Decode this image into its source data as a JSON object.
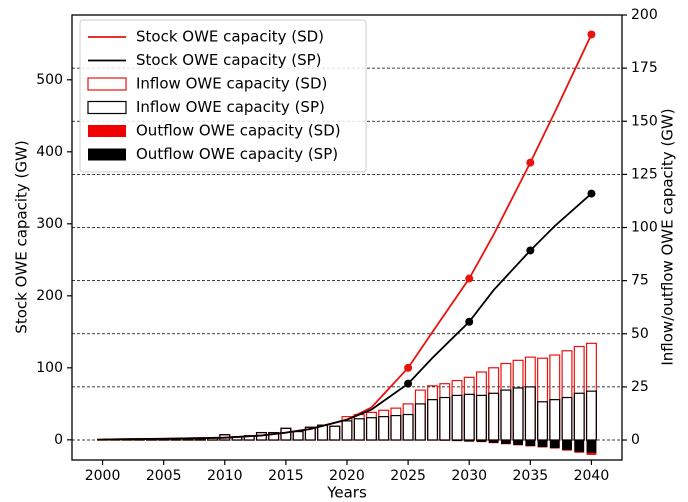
{
  "chart_data": {
    "type": "combo",
    "xlabel": "Years",
    "ylabel": "Stock OWE capacity (GW)",
    "y2label": "Inflow/outflow OWE capacity (GW)",
    "xlim": [
      1997.5,
      2042.5
    ],
    "xticks": [
      2000,
      2005,
      2010,
      2015,
      2020,
      2025,
      2030,
      2035,
      2040
    ],
    "ylim": [
      -28,
      590
    ],
    "yticks": [
      0,
      100,
      200,
      300,
      400,
      500
    ],
    "y2lim": [
      -9.4,
      200
    ],
    "y2ticks": [
      0,
      25,
      50,
      75,
      100,
      125,
      150,
      175,
      200
    ],
    "grid": "y2",
    "legend": "upper left",
    "marked_x": [
      2025,
      2030,
      2035,
      2040
    ],
    "x": [
      2000,
      2001,
      2002,
      2003,
      2004,
      2005,
      2006,
      2007,
      2008,
      2009,
      2010,
      2011,
      2012,
      2013,
      2014,
      2015,
      2016,
      2017,
      2018,
      2019,
      2020,
      2021,
      2022,
      2023,
      2024,
      2025,
      2026,
      2027,
      2028,
      2029,
      2030,
      2031,
      2032,
      2033,
      2034,
      2035,
      2036,
      2037,
      2038,
      2039,
      2040
    ],
    "series": [
      {
        "name": "Stock OWE capacity (SD)",
        "kind": "line",
        "color": "#e8130f",
        "x": [
          2000,
          2005,
          2010,
          2013,
          2015,
          2017,
          2020,
          2022,
          2025,
          2027,
          2030,
          2032,
          2035,
          2037,
          2040
        ],
        "values": [
          0.5,
          1.5,
          3,
          6,
          10,
          15,
          28,
          45,
          100,
          150,
          224,
          285,
          385,
          455,
          563
        ]
      },
      {
        "name": "Stock OWE capacity (SP)",
        "kind": "line",
        "color": "#000000",
        "x": [
          2000,
          2005,
          2010,
          2013,
          2015,
          2017,
          2020,
          2022,
          2025,
          2027,
          2030,
          2032,
          2035,
          2037,
          2040
        ],
        "values": [
          0.5,
          1.5,
          3,
          6,
          10,
          15,
          28,
          42,
          78,
          114,
          164,
          208,
          263,
          297,
          342
        ]
      },
      {
        "name": "Inflow OWE capacity (SD)",
        "kind": "bar",
        "style": "outline",
        "axis": "y2",
        "color": "#e8130f",
        "values": [
          0.3,
          0.3,
          0.3,
          0.4,
          0.4,
          0.4,
          0.5,
          0.5,
          0.6,
          1,
          2.5,
          1.5,
          2,
          3.5,
          3.5,
          5.5,
          4,
          6,
          7,
          6.5,
          11,
          12,
          13,
          14,
          15,
          17,
          23.5,
          25.5,
          26.5,
          28,
          29.5,
          32,
          34,
          36,
          37.5,
          39,
          38.5,
          40,
          42,
          44,
          45.5
        ]
      },
      {
        "name": "Inflow OWE capacity (SP)",
        "kind": "bar",
        "style": "outline",
        "axis": "y2",
        "color": "#000000",
        "values": [
          0.3,
          0.3,
          0.3,
          0.4,
          0.4,
          0.4,
          0.5,
          0.5,
          0.6,
          1,
          2.5,
          1.5,
          2,
          3.5,
          3.5,
          5.5,
          4,
          6,
          7,
          6.5,
          9,
          10,
          10.5,
          11,
          11.5,
          12,
          17,
          19,
          20,
          21,
          21.5,
          21,
          22,
          23.5,
          24.5,
          25,
          18,
          19,
          20,
          22,
          23
        ]
      },
      {
        "name": "Outflow OWE capacity (SD)",
        "kind": "bar",
        "style": "filled",
        "axis": "y2",
        "color": "#f00000",
        "values": [
          0,
          0,
          0,
          0,
          0,
          0,
          0,
          0,
          0,
          0,
          0,
          0,
          0,
          0,
          0,
          0,
          0,
          0,
          0,
          0,
          0,
          0,
          0,
          0,
          0,
          0,
          0,
          0,
          -0.3,
          -0.5,
          -0.8,
          -1,
          -1.5,
          -2,
          -2.5,
          -3,
          -3.5,
          -4,
          -5,
          -6,
          -7
        ]
      },
      {
        "name": "Outflow OWE capacity (SP)",
        "kind": "bar",
        "style": "filled",
        "axis": "y2",
        "color": "#000000",
        "values": [
          0,
          0,
          0,
          0,
          0,
          0,
          0,
          0,
          0,
          0,
          0,
          0,
          0,
          0,
          0,
          0,
          0,
          0,
          0,
          0,
          0,
          0,
          0,
          0,
          0,
          0,
          0,
          0,
          -0.3,
          -0.5,
          -0.7,
          -0.9,
          -1.3,
          -1.8,
          -2.3,
          -2.8,
          -3.3,
          -3.8,
          -4.6,
          -5.5,
          -6
        ]
      }
    ]
  }
}
